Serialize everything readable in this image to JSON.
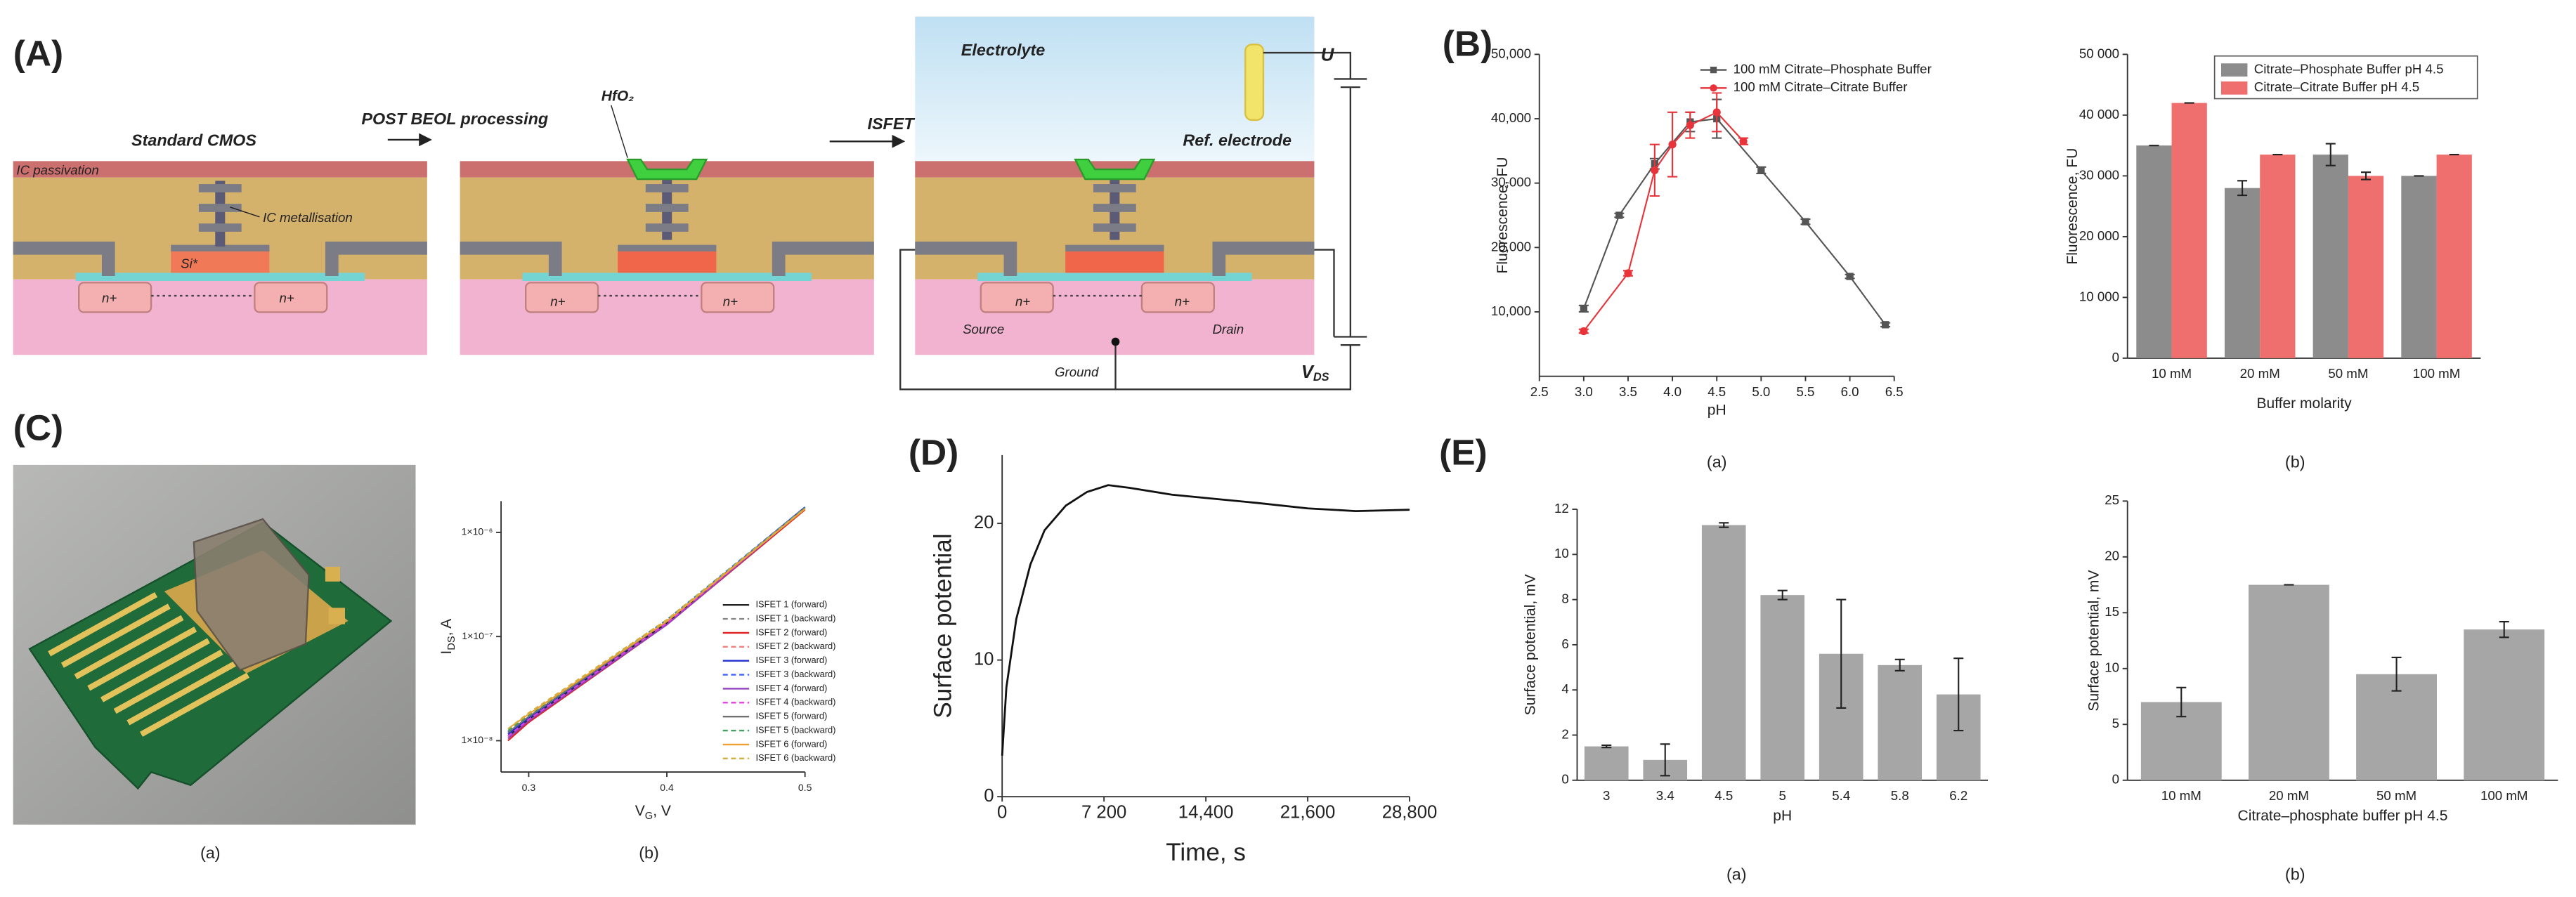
{
  "panels": {
    "A": "(A)",
    "B": "(B)",
    "C": "(C)",
    "D": "(D)",
    "E": "(E)"
  },
  "diagram": {
    "standard_cmos": "Standard CMOS",
    "post_beol": "POST BEOL processing",
    "isfet": "ISFET",
    "ic_passivation": "IC passivation",
    "ic_metallisation": "IC metallisation",
    "si": "Si*",
    "n_plus": "n+",
    "hfo2": "HfO₂",
    "electrolyte": "Electrolyte",
    "u": "U",
    "ref_electrode": "Ref. electrode",
    "source": "Source",
    "drain": "Drain",
    "ground": "Ground",
    "vds": {
      "main": "V",
      "sub": "DS"
    }
  },
  "photo_caption": "(a)",
  "chart_data": [
    {
      "type": "line",
      "caption": "(a)",
      "xlabel": "pH",
      "ylabel": "Fluorescence, FU",
      "xlim": [
        2.5,
        6.5
      ],
      "xticks": [
        2.5,
        {
          "value": 3,
          "label": "3.0"
        },
        3.5,
        {
          "value": 4,
          "label": "4.0"
        },
        4.5,
        {
          "value": 5,
          "label": "5.0"
        },
        5.5,
        {
          "value": 6,
          "label": "6.0"
        },
        6.5
      ],
      "ylim": [
        0,
        50000
      ],
      "yticks": [
        {
          "value": 10000,
          "label": "10,000"
        },
        {
          "value": 20000,
          "label": "20,000"
        },
        {
          "value": 30000,
          "label": "30,000"
        },
        {
          "value": 40000,
          "label": "40,000"
        },
        {
          "value": 50000,
          "label": "50,000"
        }
      ],
      "legend": "upper right",
      "series": [
        {
          "name": "100 mM Citrate–Phosphate Buffer",
          "color": "#555555",
          "marker": "square",
          "x": [
            3.0,
            3.4,
            3.8,
            4.2,
            4.5,
            5.0,
            5.5,
            6.0,
            6.4
          ],
          "values": [
            10500,
            25000,
            33000,
            39500,
            40000,
            32000,
            24000,
            15500,
            8000
          ],
          "errors": [
            500,
            300,
            800,
            1500,
            3000,
            500,
            400,
            300,
            300
          ]
        },
        {
          "name": "100 mM Citrate–Citrate Buffer",
          "color": "#e8333a",
          "marker": "circle",
          "x": [
            3.0,
            3.5,
            3.8,
            4.0,
            4.2,
            4.5,
            4.8
          ],
          "values": [
            7000,
            16000,
            32000,
            36000,
            39000,
            41000,
            36500
          ],
          "errors": [
            300,
            400,
            4000,
            5000,
            2000,
            3000,
            500
          ]
        }
      ]
    },
    {
      "type": "bar",
      "caption": "(b)",
      "xlabel": "Buffer molarity",
      "ylabel": "Fluorescence, FU",
      "categories": [
        "10 mM",
        "20 mM",
        "50 mM",
        "100 mM"
      ],
      "ylim": [
        0,
        50000
      ],
      "yticks": [
        0,
        {
          "value": 10000,
          "label": "10 000"
        },
        {
          "value": 20000,
          "label": "20 000"
        },
        {
          "value": 30000,
          "label": "30 000"
        },
        {
          "value": 40000,
          "label": "40 000"
        },
        {
          "value": 50000,
          "label": "50 000"
        }
      ],
      "legend": "upper right",
      "series": [
        {
          "name": "Citrate–Phosphate Buffer pH 4.5",
          "color": "#8c8c8c",
          "values": [
            35000,
            28000,
            33500,
            30000
          ],
          "errors": [
            0,
            1200,
            1800,
            0
          ]
        },
        {
          "name": "Citrate–Citrate Buffer pH 4.5",
          "color": "#ef6f6f",
          "values": [
            42000,
            33500,
            30000,
            33500
          ],
          "errors": [
            0,
            0,
            600,
            0
          ]
        }
      ]
    },
    {
      "type": "line",
      "caption": "(b)",
      "xlabel": [
        "V",
        "G",
        ", V"
      ],
      "ylabel": [
        "I",
        "DS",
        ", A"
      ],
      "xlim": [
        0.28,
        0.5
      ],
      "xticks": [
        0.3,
        0.4,
        0.5
      ],
      "ylim": [
        5e-09,
        2e-06
      ],
      "log_y": true,
      "yticks": [
        {
          "value": 1e-08,
          "label": "1×10⁻⁸"
        },
        {
          "value": 1e-07,
          "label": "1×10⁻⁷"
        },
        {
          "value": 1e-06,
          "label": "1×10⁻⁶"
        }
      ],
      "legend": "lower right",
      "x": [
        0.285,
        0.3,
        0.4,
        0.5
      ],
      "series": [
        {
          "name": "ISFET 1 (forward)",
          "color": "#222222",
          "dash": false,
          "values": [
            1.1e-08,
            1.6e-08,
            1.35e-07,
            1.7e-06
          ]
        },
        {
          "name": "ISFET 1 (backward)",
          "color": "#888888",
          "dash": true,
          "values": [
            1.2e-08,
            1.7e-08,
            1.4e-07,
            1.7e-06
          ]
        },
        {
          "name": "ISFET 2 (forward)",
          "color": "#e02020",
          "dash": false,
          "values": [
            1e-08,
            1.5e-08,
            1.3e-07,
            1.65e-06
          ]
        },
        {
          "name": "ISFET 2 (backward)",
          "color": "#f08080",
          "dash": true,
          "values": [
            1.1e-08,
            1.6e-08,
            1.35e-07,
            1.7e-06
          ]
        },
        {
          "name": "ISFET 3 (forward)",
          "color": "#2030d0",
          "dash": false,
          "values": [
            1.15e-08,
            1.65e-08,
            1.4e-07,
            1.75e-06
          ]
        },
        {
          "name": "ISFET 3 (backward)",
          "color": "#4060ff",
          "dash": true,
          "values": [
            1.2e-08,
            1.7e-08,
            1.45e-07,
            1.75e-06
          ]
        },
        {
          "name": "ISFET 4 (forward)",
          "color": "#9040c0",
          "dash": false,
          "values": [
            1.05e-08,
            1.55e-08,
            1.3e-07,
            1.7e-06
          ]
        },
        {
          "name": "ISFET 4 (backward)",
          "color": "#e040e0",
          "dash": true,
          "values": [
            1.1e-08,
            1.6e-08,
            1.35e-07,
            1.7e-06
          ]
        },
        {
          "name": "ISFET 5 (forward)",
          "color": "#707070",
          "dash": false,
          "values": [
            1.2e-08,
            1.7e-08,
            1.4e-07,
            1.72e-06
          ]
        },
        {
          "name": "ISFET 5 (backward)",
          "color": "#40a060",
          "dash": true,
          "values": [
            1.25e-08,
            1.75e-08,
            1.45e-07,
            1.72e-06
          ]
        },
        {
          "name": "ISFET 6 (forward)",
          "color": "#f0a030",
          "dash": false,
          "values": [
            1.3e-08,
            1.8e-08,
            1.4e-07,
            1.68e-06
          ]
        },
        {
          "name": "ISFET 6 (backward)",
          "color": "#d0b040",
          "dash": true,
          "values": [
            1.3e-08,
            1.85e-08,
            1.45e-07,
            1.7e-06
          ]
        }
      ]
    },
    {
      "type": "line",
      "xlabel": "Time, s",
      "ylabel": "Surface potential",
      "xlim": [
        0,
        28800
      ],
      "xticks": [
        0,
        {
          "value": 7200,
          "label": "7 200"
        },
        {
          "value": 14400,
          "label": "14,400"
        },
        {
          "value": 21600,
          "label": "21,600"
        },
        {
          "value": 28800,
          "label": "28,800"
        }
      ],
      "ylim": [
        0,
        25
      ],
      "yticks": [
        0,
        10,
        20
      ],
      "color": "#111111",
      "x": [
        0,
        300,
        1000,
        2000,
        3000,
        4500,
        6000,
        7500,
        9000,
        12000,
        15000,
        18000,
        21600,
        25000,
        28800
      ],
      "values": [
        3,
        8,
        13,
        17,
        19.5,
        21.3,
        22.3,
        22.8,
        22.6,
        22.1,
        21.8,
        21.5,
        21.1,
        20.9,
        21.0
      ]
    },
    {
      "type": "bar",
      "caption": "(a)",
      "xlabel": "pH",
      "ylabel": "Surface potential, mV",
      "categories": [
        "3",
        "3.4",
        "4.5",
        "5",
        "5.4",
        "5.8",
        "6.2"
      ],
      "ylim": [
        0,
        12
      ],
      "yticks": [
        0,
        2,
        4,
        6,
        8,
        10,
        12
      ],
      "color": "#a6a6a6",
      "values": [
        1.5,
        0.9,
        11.3,
        8.2,
        5.6,
        5.1,
        3.8
      ],
      "errors": [
        0.05,
        0.7,
        0.1,
        0.2,
        2.4,
        0.25,
        1.6
      ]
    },
    {
      "type": "bar",
      "caption": "(b)",
      "xlabel": "Citrate–phosphate buffer pH 4.5",
      "ylabel": "Surface potential, mV",
      "categories": [
        "10 mM",
        "20 mM",
        "50 mM",
        "100 mM"
      ],
      "ylim": [
        0,
        25
      ],
      "yticks": [
        0,
        5,
        10,
        15,
        20,
        25
      ],
      "color": "#a6a6a6",
      "values": [
        7,
        17.5,
        9.5,
        13.5
      ],
      "errors": [
        1.3,
        0,
        1.5,
        0.7
      ]
    }
  ]
}
